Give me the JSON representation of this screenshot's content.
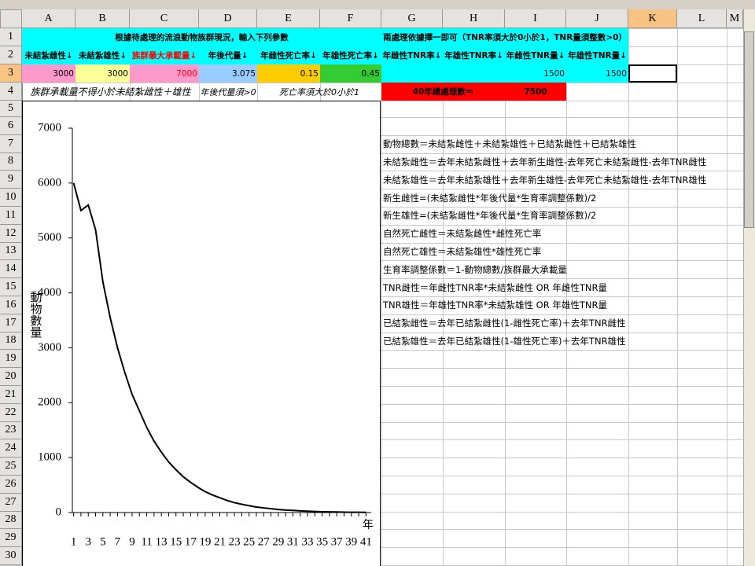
{
  "column_headers": [
    "A",
    "B",
    "C",
    "D",
    "E",
    "F",
    "G",
    "H",
    "I",
    "J",
    "K",
    "L",
    "M"
  ],
  "row_headers": [
    1,
    2,
    3,
    4,
    5,
    6,
    7,
    8,
    9,
    10,
    11,
    12,
    13,
    14,
    15,
    16,
    17,
    18,
    19,
    20,
    21,
    22,
    23,
    24,
    25,
    26,
    27,
    28,
    29,
    30
  ],
  "cells": {
    "A1": "根據待處理的流浪動物族群現況，輸入下列參數",
    "G1": "兩處理依據擇一即可（TNR率須大於0小於1，TNR量須整數>0）",
    "A2": "未結紮雌性↓",
    "B2": "未結紮雄性↓",
    "C2": "族群最大承載量↓",
    "D2": "年後代量↓",
    "E2": "年雌性死亡率↓",
    "F2": "年雄性死亡率↓",
    "G2": "年雌性TNR率↓",
    "H2": "年雄性TNR率↓",
    "I2": "年雌性TNR量↓",
    "J2": "年雄性TNR量↓",
    "A3": 3000,
    "B3": 3000,
    "C3": 7000,
    "D3": 3.075,
    "E3": 0.15,
    "F3": 0.45,
    "I3": 1500,
    "J3": 1500,
    "A4": "族群承載量不得小於未結紮雌性＋雄性",
    "D4": "年後代量須>0",
    "E4": "死亡率須大於0小於1",
    "G4": "40年總處理數＝",
    "I4": 7500
  },
  "formulas": [
    "動物總數＝未結紮雌性＋未結紮雄性＋已結紮雌性＋已結紮雄性",
    "未結紮雌性＝去年未結紮雌性＋去年新生雌性-去年死亡未結紮雌性-去年TNR雌性",
    "未結紮雄性＝去年未結紮雄性＋去年新生雄性-去年死亡未結紮雄性-去年TNR雄性",
    "新生雌性=(未結紮雌性*年後代量*生育率調整係數)/2",
    "新生雄性=(未結紮雌性*年後代量*生育率調整係數)/2",
    "自然死亡雌性＝未結紮雌性*雌性死亡率",
    "自然死亡雄性＝未結紮雄性*雄性死亡率",
    "生育率調整係數＝1-動物總數/族群最大承載量",
    "TNR雌性＝年雌性TNR率*未結紮雌性 OR 年雌性TNR量",
    "TNR雄性＝年雄性TNR率*未結紮雄性 OR 年雄性TNR量",
    "已結紮雌性＝去年已結紮雌性(1-雌性死亡率)＋去年TNR雌性",
    "已結紮雄性＝去年已結紮雄性(1-雄性死亡率)＋去年TNR雄性"
  ],
  "chart_data": {
    "type": "line",
    "y_label": "動物數量",
    "x_label": "年",
    "categories": [
      1,
      null,
      3,
      null,
      5,
      null,
      7,
      null,
      9,
      null,
      11,
      null,
      13,
      null,
      15,
      null,
      17,
      null,
      19,
      null,
      21,
      null,
      23,
      null,
      25,
      null,
      27,
      null,
      29,
      null,
      31,
      null,
      33,
      null,
      35,
      null,
      37,
      null,
      39,
      null,
      41
    ],
    "values": [
      6000,
      5500,
      5600,
      5150,
      4200,
      3550,
      3000,
      2550,
      2150,
      1850,
      1550,
      1300,
      1100,
      920,
      780,
      650,
      550,
      460,
      380,
      320,
      270,
      220,
      180,
      150,
      125,
      100,
      85,
      70,
      55,
      45,
      40,
      30,
      25,
      20,
      15,
      12,
      10,
      8,
      6,
      5,
      4
    ],
    "color": "#000000",
    "ylim": [
      0,
      7000
    ],
    "yticks": [
      0,
      1000,
      2000,
      3000,
      4000,
      5000,
      6000,
      7000
    ],
    "grid": false
  }
}
